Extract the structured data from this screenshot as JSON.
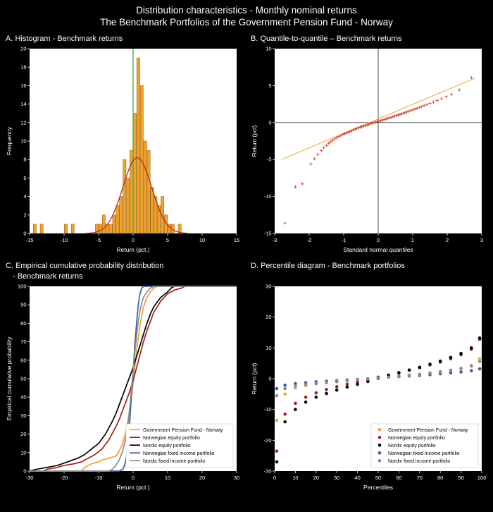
{
  "page": {
    "title_line1": "Distribution characteristics - Monthly nominal returns",
    "title_line2": "The Benchmark Portfolios of the Government Pension Fund - Norway"
  },
  "chart_data": [
    {
      "id": "A",
      "type": "bar",
      "subtype": "histogram",
      "title": "A. Histogram - Benchmark returns",
      "xlabel": "Return (pct.)",
      "ylabel": "Frequency",
      "xlim": [
        -15,
        15
      ],
      "ylim": [
        0,
        20
      ],
      "xticks": [
        -15,
        -10,
        -5,
        0,
        5,
        10,
        15
      ],
      "yticks": [
        0,
        2,
        4,
        6,
        8,
        10,
        12,
        14,
        16,
        18,
        20
      ],
      "bin_width": 0.5,
      "bar_color": "#f0a22e",
      "bar_edge_color": "#8a5a12",
      "bars": [
        [
          -14.5,
          1
        ],
        [
          -13.5,
          1
        ],
        [
          -10,
          1
        ],
        [
          -9,
          1
        ],
        [
          -5.5,
          1
        ],
        [
          -5,
          1
        ],
        [
          -4.5,
          2
        ],
        [
          -4,
          1
        ],
        [
          -3.5,
          1
        ],
        [
          -3,
          2
        ],
        [
          -2.5,
          3
        ],
        [
          -2,
          4
        ],
        [
          -1.5,
          8
        ],
        [
          -1,
          6
        ],
        [
          -0.5,
          9
        ],
        [
          0,
          13
        ],
        [
          0.5,
          19
        ],
        [
          1,
          16
        ],
        [
          1.5,
          10
        ],
        [
          2,
          9
        ],
        [
          2.5,
          5
        ],
        [
          3,
          4
        ],
        [
          3.5,
          3
        ],
        [
          4,
          4
        ],
        [
          4.5,
          2
        ],
        [
          5,
          1
        ],
        [
          5.5,
          1
        ],
        [
          6.5,
          1
        ]
      ],
      "normal_curve": {
        "mean": 0.6,
        "sd": 2.1,
        "peak": 8.2,
        "range": [
          -7,
          8
        ],
        "color": "#b22222"
      },
      "zero_line": {
        "x": 0,
        "color": "#4caf50"
      }
    },
    {
      "id": "B",
      "type": "scatter",
      "subtype": "qq",
      "title": "B. Quantile-to-quantile – Benchmark returns",
      "xlabel": "Standard normal quantiles",
      "ylabel": "Return (pct)",
      "xlim": [
        -3,
        3
      ],
      "ylim": [
        -15,
        10
      ],
      "xticks": [
        -3,
        -2,
        -1,
        0,
        1,
        2,
        3
      ],
      "yticks": [
        -15,
        -10,
        -5,
        0,
        5,
        10
      ],
      "marker": "+",
      "marker_color": "#cc4433",
      "ref_line": {
        "x": [
          -2.8,
          2.8
        ],
        "y": [
          -5.0,
          6.0
        ],
        "color": "#f0a22e"
      },
      "points": [
        [
          -2.7,
          -13.6
        ],
        [
          -2.4,
          -8.7
        ],
        [
          -2.2,
          -8.3
        ],
        [
          -1.95,
          -5.6
        ],
        [
          -1.85,
          -4.9
        ],
        [
          -1.75,
          -4.3
        ],
        [
          -1.65,
          -3.8
        ],
        [
          -1.58,
          -3.4
        ],
        [
          -1.5,
          -3.1
        ],
        [
          -1.44,
          -2.8
        ],
        [
          -1.38,
          -2.6
        ],
        [
          -1.32,
          -2.4
        ],
        [
          -1.26,
          -2.2
        ],
        [
          -1.2,
          -2.05
        ],
        [
          -1.14,
          -1.9
        ],
        [
          -1.08,
          -1.75
        ],
        [
          -1.02,
          -1.6
        ],
        [
          -0.97,
          -1.5
        ],
        [
          -0.92,
          -1.4
        ],
        [
          -0.87,
          -1.3
        ],
        [
          -0.82,
          -1.2
        ],
        [
          -0.77,
          -1.1
        ],
        [
          -0.72,
          -1.0
        ],
        [
          -0.67,
          -0.9
        ],
        [
          -0.62,
          -0.8
        ],
        [
          -0.57,
          -0.72
        ],
        [
          -0.52,
          -0.64
        ],
        [
          -0.47,
          -0.55
        ],
        [
          -0.42,
          -0.47
        ],
        [
          -0.37,
          -0.4
        ],
        [
          -0.32,
          -0.32
        ],
        [
          -0.27,
          -0.24
        ],
        [
          -0.22,
          -0.16
        ],
        [
          -0.17,
          -0.08
        ],
        [
          -0.12,
          0.0
        ],
        [
          -0.07,
          0.07
        ],
        [
          -0.02,
          0.14
        ],
        [
          0.03,
          0.2
        ],
        [
          0.08,
          0.28
        ],
        [
          0.13,
          0.35
        ],
        [
          0.18,
          0.42
        ],
        [
          0.23,
          0.5
        ],
        [
          0.28,
          0.58
        ],
        [
          0.33,
          0.65
        ],
        [
          0.38,
          0.72
        ],
        [
          0.43,
          0.8
        ],
        [
          0.48,
          0.88
        ],
        [
          0.53,
          0.95
        ],
        [
          0.58,
          1.03
        ],
        [
          0.63,
          1.1
        ],
        [
          0.68,
          1.18
        ],
        [
          0.73,
          1.27
        ],
        [
          0.78,
          1.35
        ],
        [
          0.83,
          1.44
        ],
        [
          0.88,
          1.52
        ],
        [
          0.94,
          1.62
        ],
        [
          1.0,
          1.72
        ],
        [
          1.06,
          1.82
        ],
        [
          1.12,
          1.93
        ],
        [
          1.19,
          2.05
        ],
        [
          1.26,
          2.17
        ],
        [
          1.33,
          2.3
        ],
        [
          1.41,
          2.44
        ],
        [
          1.5,
          2.6
        ],
        [
          1.6,
          2.78
        ],
        [
          1.71,
          2.98
        ],
        [
          1.83,
          3.22
        ],
        [
          1.97,
          3.5
        ],
        [
          2.13,
          3.85
        ],
        [
          2.35,
          4.4
        ],
        [
          2.7,
          6.1
        ]
      ]
    },
    {
      "id": "C",
      "type": "line",
      "subtype": "ecdf",
      "title": "C. Empirical cumulative probability distribution",
      "subtitle": "- Benchmark returns",
      "xlabel": "Return (pct.)",
      "ylabel": "Empirical cumulative probability",
      "xlim": [
        -30,
        30
      ],
      "ylim": [
        0,
        100
      ],
      "xticks": [
        -30,
        -20,
        -10,
        0,
        10,
        20,
        30
      ],
      "yticks": [
        0,
        10,
        20,
        30,
        40,
        50,
        60,
        70,
        80,
        90,
        100
      ],
      "series": [
        {
          "name": "Government Pension Fund - Norway",
          "color": "#f0a22e",
          "points": [
            [
              -30,
              0
            ],
            [
              -15,
              0
            ],
            [
              -14,
              2
            ],
            [
              -13,
              3
            ],
            [
              -12,
              4
            ],
            [
              -10,
              5
            ],
            [
              -9,
              6
            ],
            [
              -7,
              7
            ],
            [
              -5,
              8
            ],
            [
              -4,
              11
            ],
            [
              -3,
              15
            ],
            [
              -2,
              22
            ],
            [
              -1,
              33
            ],
            [
              0,
              47
            ],
            [
              0.5,
              56
            ],
            [
              1,
              65
            ],
            [
              1.5,
              72
            ],
            [
              2,
              79
            ],
            [
              2.5,
              84
            ],
            [
              3,
              89
            ],
            [
              4,
              94
            ],
            [
              5,
              97
            ],
            [
              6,
              99
            ],
            [
              7,
              100
            ],
            [
              30,
              100
            ]
          ]
        },
        {
          "name": "Norwegian equity portfolio",
          "color": "#9b2420",
          "points": [
            [
              -30,
              0
            ],
            [
              -26,
              0
            ],
            [
              -25,
              1
            ],
            [
              -22,
              2
            ],
            [
              -20,
              3
            ],
            [
              -17,
              4
            ],
            [
              -15,
              5
            ],
            [
              -13,
              7
            ],
            [
              -11,
              9
            ],
            [
              -9,
              12
            ],
            [
              -7,
              17
            ],
            [
              -5,
              24
            ],
            [
              -4,
              28
            ],
            [
              -3,
              33
            ],
            [
              -2,
              38
            ],
            [
              -1,
              43
            ],
            [
              0,
              49
            ],
            [
              1,
              56
            ],
            [
              2,
              63
            ],
            [
              3,
              70
            ],
            [
              4,
              76
            ],
            [
              5,
              81
            ],
            [
              6,
              86
            ],
            [
              8,
              92
            ],
            [
              10,
              96
            ],
            [
              12,
              98
            ],
            [
              14,
              99
            ],
            [
              15,
              100
            ],
            [
              30,
              100
            ]
          ]
        },
        {
          "name": "Nordic equity portfolio",
          "color": "#000000",
          "points": [
            [
              -30,
              0
            ],
            [
              -28,
              1
            ],
            [
              -25,
              2
            ],
            [
              -22,
              3
            ],
            [
              -19,
              5
            ],
            [
              -16,
              7
            ],
            [
              -14,
              9
            ],
            [
              -12,
              12
            ],
            [
              -10,
              15
            ],
            [
              -8,
              20
            ],
            [
              -6,
              27
            ],
            [
              -5,
              31
            ],
            [
              -4,
              36
            ],
            [
              -3,
              41
            ],
            [
              -2,
              46
            ],
            [
              -1,
              51
            ],
            [
              0,
              56
            ],
            [
              1,
              62
            ],
            [
              2,
              68
            ],
            [
              3,
              74
            ],
            [
              4,
              80
            ],
            [
              5,
              85
            ],
            [
              6,
              89
            ],
            [
              8,
              94
            ],
            [
              10,
              97
            ],
            [
              11,
              99
            ],
            [
              12,
              100
            ],
            [
              30,
              100
            ]
          ]
        },
        {
          "name": "Norwegian fixed income portfolio",
          "color": "#3c5ba4",
          "points": [
            [
              -30,
              0
            ],
            [
              -4,
              0
            ],
            [
              -3,
              1
            ],
            [
              -2.5,
              3
            ],
            [
              -2,
              7
            ],
            [
              -1.5,
              14
            ],
            [
              -1,
              26
            ],
            [
              -0.5,
              40
            ],
            [
              0,
              54
            ],
            [
              0.5,
              68
            ],
            [
              1,
              80
            ],
            [
              1.5,
              90
            ],
            [
              2,
              96
            ],
            [
              2.5,
              99
            ],
            [
              3,
              100
            ],
            [
              30,
              100
            ]
          ]
        },
        {
          "name": "Nordic fixed income portfolio",
          "color": "#8c8c8c",
          "points": [
            [
              -30,
              0
            ],
            [
              -7,
              0
            ],
            [
              -6,
              1
            ],
            [
              -5,
              3
            ],
            [
              -4,
              6
            ],
            [
              -3,
              11
            ],
            [
              -2,
              19
            ],
            [
              -1.5,
              25
            ],
            [
              -1,
              34
            ],
            [
              -0.5,
              44
            ],
            [
              0,
              54
            ],
            [
              0.5,
              64
            ],
            [
              1,
              73
            ],
            [
              1.5,
              81
            ],
            [
              2,
              87
            ],
            [
              2.5,
              91
            ],
            [
              3,
              94
            ],
            [
              4,
              97
            ],
            [
              5,
              99
            ],
            [
              6,
              100
            ],
            [
              30,
              100
            ]
          ]
        }
      ]
    },
    {
      "id": "D",
      "type": "scatter",
      "subtype": "percentile",
      "title": "D. Percentile diagram - Benchmark portfolios",
      "xlabel": "Percentiles",
      "ylabel": "Return (pct)",
      "xlim": [
        0,
        100
      ],
      "ylim": [
        -30,
        30
      ],
      "xticks": [
        0,
        10,
        20,
        30,
        40,
        50,
        60,
        70,
        80,
        90,
        100
      ],
      "yticks": [
        -30,
        -20,
        -10,
        0,
        10,
        20,
        30
      ],
      "percentiles": [
        1,
        5,
        10,
        15,
        20,
        25,
        30,
        35,
        40,
        45,
        50,
        55,
        60,
        65,
        70,
        75,
        80,
        85,
        90,
        95,
        99
      ],
      "series": [
        {
          "name": "Government Pension Fund - Norway",
          "color": "#f0a22e",
          "values": [
            -13.5,
            -5.0,
            -3.0,
            -2.2,
            -1.7,
            -1.3,
            -1.0,
            -0.7,
            -0.4,
            -0.1,
            0.3,
            0.6,
            0.9,
            1.2,
            1.5,
            1.9,
            2.3,
            2.8,
            3.4,
            4.3,
            6.5
          ]
        },
        {
          "name": "Norwegian equity portfolio",
          "color": "#9b2420",
          "values": [
            -23.5,
            -11.5,
            -8.0,
            -6.0,
            -4.6,
            -3.5,
            -2.6,
            -1.8,
            -1.0,
            -0.3,
            0.5,
            1.2,
            2.0,
            2.8,
            3.6,
            4.5,
            5.4,
            6.5,
            7.8,
            9.6,
            12.8
          ]
        },
        {
          "name": "Nordic equity portfolio",
          "color": "#000000",
          "values": [
            -27.0,
            -14.0,
            -10.0,
            -7.6,
            -6.0,
            -4.8,
            -3.7,
            -2.7,
            -1.8,
            -0.9,
            0.1,
            1.0,
            1.9,
            2.8,
            3.7,
            4.7,
            5.7,
            6.9,
            8.2,
            10.0,
            13.2
          ]
        },
        {
          "name": "Norwegian fixed income portfolio",
          "color": "#3c5ba4",
          "values": [
            -3.2,
            -2.1,
            -1.6,
            -1.3,
            -1.0,
            -0.8,
            -0.6,
            -0.4,
            -0.2,
            0.0,
            0.3,
            0.5,
            0.7,
            0.9,
            1.1,
            1.3,
            1.6,
            1.9,
            2.2,
            2.6,
            3.2
          ]
        },
        {
          "name": "Nordic fixed income portfolio",
          "color": "#8c8c8c",
          "values": [
            -5.5,
            -3.2,
            -2.4,
            -1.9,
            -1.5,
            -1.2,
            -0.9,
            -0.6,
            -0.3,
            -0.1,
            0.2,
            0.5,
            0.8,
            1.1,
            1.4,
            1.8,
            2.2,
            2.7,
            3.3,
            4.1,
            5.6
          ]
        }
      ]
    }
  ]
}
